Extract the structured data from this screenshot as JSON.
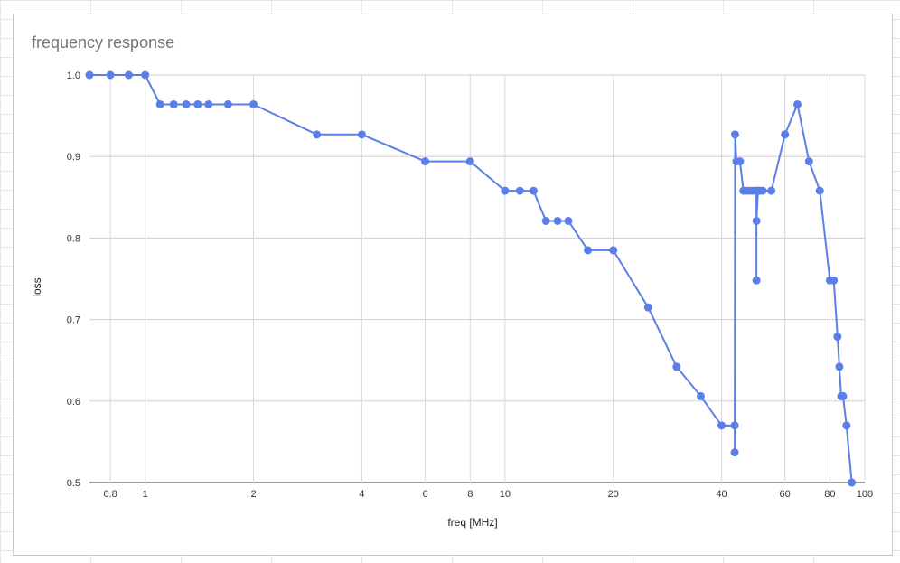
{
  "chart_data": {
    "type": "line",
    "title": "frequency response",
    "xlabel": "freq [MHz]",
    "ylabel": "loss",
    "x_scale": "log",
    "xlim": [
      0.7,
      100
    ],
    "ylim": [
      0.5,
      1.0
    ],
    "grid": true,
    "legend": "none",
    "x_ticks": [
      0.8,
      1,
      2,
      4,
      6,
      8,
      10,
      20,
      40,
      60,
      80,
      100
    ],
    "x_tick_labels": [
      "0.8",
      "1",
      "2",
      "4",
      "6",
      "8",
      "10",
      "20",
      "40",
      "60",
      "80",
      "100"
    ],
    "y_ticks": [
      0.5,
      0.6,
      0.7,
      0.8,
      0.9,
      1.0
    ],
    "y_tick_labels": [
      "0.5",
      "0.6",
      "0.7",
      "0.8",
      "0.9",
      "1.0"
    ],
    "series": [
      {
        "color": "#5b7fe8",
        "points": [
          [
            0.7,
            1.0
          ],
          [
            0.8,
            1.0
          ],
          [
            0.9,
            1.0
          ],
          [
            1.0,
            1.0
          ],
          [
            1.1,
            0.964
          ],
          [
            1.2,
            0.964
          ],
          [
            1.3,
            0.964
          ],
          [
            1.4,
            0.964
          ],
          [
            1.5,
            0.964
          ],
          [
            1.7,
            0.964
          ],
          [
            2.0,
            0.964
          ],
          [
            3.0,
            0.927
          ],
          [
            4.0,
            0.927
          ],
          [
            6.0,
            0.894
          ],
          [
            8.0,
            0.894
          ],
          [
            10.0,
            0.858
          ],
          [
            11.0,
            0.858
          ],
          [
            12.0,
            0.858
          ],
          [
            13.0,
            0.821
          ],
          [
            14.0,
            0.821
          ],
          [
            15.0,
            0.821
          ],
          [
            17.0,
            0.785
          ],
          [
            20.0,
            0.785
          ],
          [
            25.0,
            0.715
          ],
          [
            30.0,
            0.642
          ],
          [
            35.0,
            0.606
          ],
          [
            40.0,
            0.57
          ],
          [
            43.5,
            0.57
          ],
          [
            43.5,
            0.537
          ],
          [
            43.6,
            0.927
          ],
          [
            44.0,
            0.894
          ],
          [
            45.0,
            0.894
          ],
          [
            46.0,
            0.858
          ],
          [
            47.0,
            0.858
          ],
          [
            48.0,
            0.858
          ],
          [
            49.0,
            0.858
          ],
          [
            50.0,
            0.858
          ],
          [
            50.0,
            0.748
          ],
          [
            50.0,
            0.821
          ],
          [
            50.5,
            0.858
          ],
          [
            51.0,
            0.858
          ],
          [
            52.0,
            0.858
          ],
          [
            55.0,
            0.858
          ],
          [
            60.0,
            0.927
          ],
          [
            65.0,
            0.964
          ],
          [
            70.0,
            0.894
          ],
          [
            75.0,
            0.858
          ],
          [
            80.0,
            0.748
          ],
          [
            82.0,
            0.748
          ],
          [
            84.0,
            0.679
          ],
          [
            85.0,
            0.642
          ],
          [
            86.0,
            0.606
          ],
          [
            87.0,
            0.606
          ],
          [
            89.0,
            0.57
          ],
          [
            92.0,
            0.5
          ]
        ]
      }
    ]
  }
}
